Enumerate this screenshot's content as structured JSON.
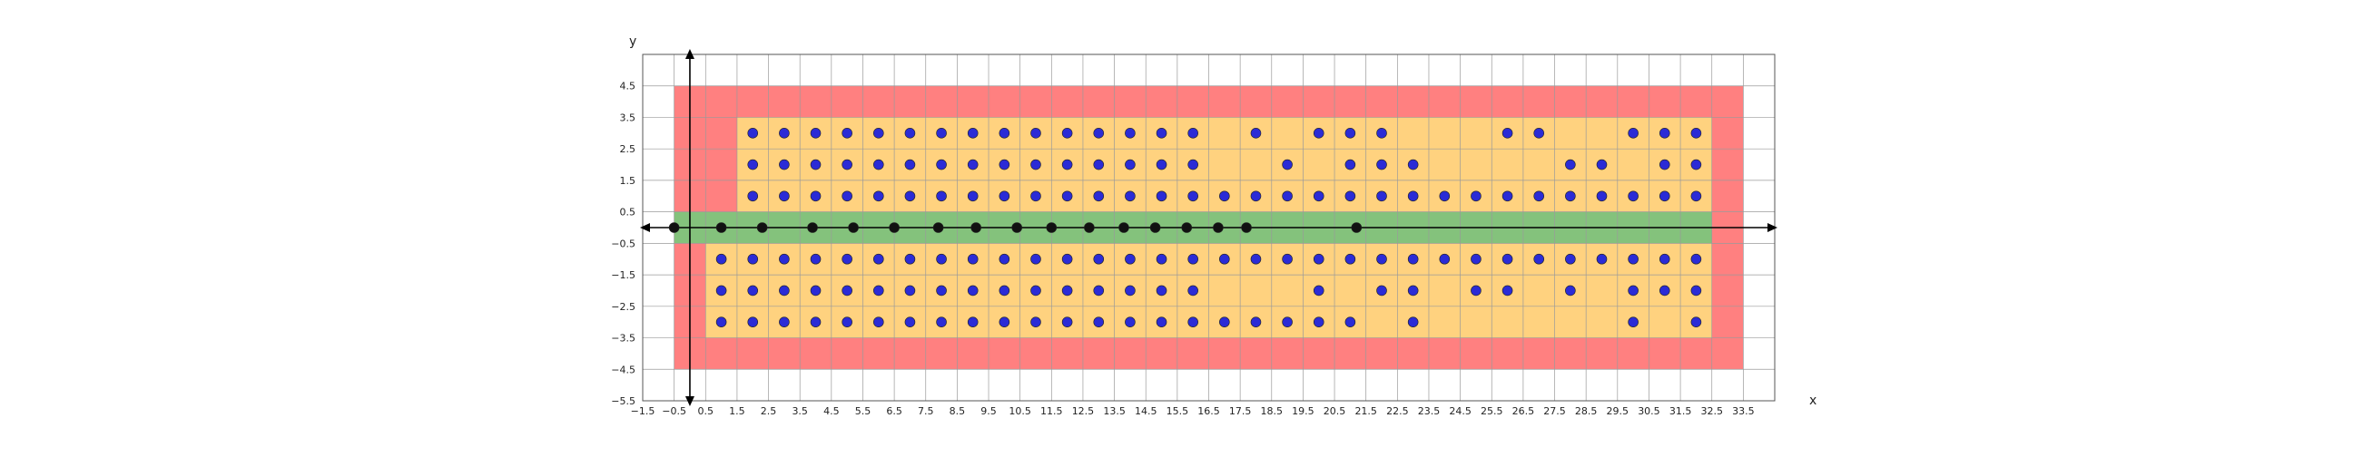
{
  "chart_data": {
    "type": "scatter",
    "title": "",
    "xlabel": "x",
    "ylabel": "y",
    "xlim": [
      -1.5,
      34.5
    ],
    "ylim": [
      -5.5,
      5.5
    ],
    "x_ticks": [
      "-1.5",
      "-0.5",
      "0.5",
      "1.5",
      "2.5",
      "3.5",
      "4.5",
      "5.5",
      "6.5",
      "7.5",
      "8.5",
      "9.5",
      "10.5",
      "11.5",
      "12.5",
      "13.5",
      "14.5",
      "15.5",
      "16.5",
      "17.5",
      "18.5",
      "19.5",
      "20.5",
      "21.5",
      "22.5",
      "23.5",
      "24.5",
      "25.5",
      "26.5",
      "27.5",
      "28.5",
      "29.5",
      "30.5",
      "31.5",
      "32.5",
      "33.5"
    ],
    "y_ticks": [
      "4.5",
      "3.5",
      "2.5",
      "1.5",
      "0.5",
      "-0.5",
      "-1.5",
      "-2.5",
      "-3.5",
      "-4.5",
      "-5.5"
    ],
    "grid": true,
    "regions": [
      {
        "name": "outer",
        "color": "#ff8080",
        "x": [
          -0.5,
          33.5
        ],
        "y": [
          -4.5,
          4.5
        ]
      },
      {
        "name": "inner-top",
        "color": "#ffd27f",
        "x": [
          1.5,
          32.5
        ],
        "y": [
          0.5,
          3.5
        ]
      },
      {
        "name": "inner-top-left",
        "color": "#ffd27f",
        "x": [
          0.5,
          1.5
        ],
        "y": [
          0.5,
          0.5
        ]
      },
      {
        "name": "inner-bottom",
        "color": "#ffd27f",
        "x": [
          0.5,
          32.5
        ],
        "y": [
          -3.5,
          -0.5
        ]
      },
      {
        "name": "band",
        "color": "#84c27c",
        "x": [
          -0.5,
          32.5
        ],
        "y": [
          -0.5,
          0.5
        ]
      }
    ],
    "series": [
      {
        "color": "#2b2bd6",
        "points": [
          [
            2,
            3
          ],
          [
            3,
            3
          ],
          [
            4,
            3
          ],
          [
            5,
            3
          ],
          [
            6,
            3
          ],
          [
            7,
            3
          ],
          [
            8,
            3
          ],
          [
            9,
            3
          ],
          [
            10,
            3
          ],
          [
            11,
            3
          ],
          [
            12,
            3
          ],
          [
            13,
            3
          ],
          [
            14,
            3
          ],
          [
            15,
            3
          ],
          [
            16,
            3
          ],
          [
            18,
            3
          ],
          [
            20,
            3
          ],
          [
            21,
            3
          ],
          [
            22,
            3
          ],
          [
            26,
            3
          ],
          [
            27,
            3
          ],
          [
            30,
            3
          ],
          [
            31,
            3
          ],
          [
            32,
            3
          ],
          [
            2,
            2
          ],
          [
            3,
            2
          ],
          [
            4,
            2
          ],
          [
            5,
            2
          ],
          [
            6,
            2
          ],
          [
            7,
            2
          ],
          [
            8,
            2
          ],
          [
            9,
            2
          ],
          [
            10,
            2
          ],
          [
            11,
            2
          ],
          [
            12,
            2
          ],
          [
            13,
            2
          ],
          [
            14,
            2
          ],
          [
            15,
            2
          ],
          [
            16,
            2
          ],
          [
            19,
            2
          ],
          [
            21,
            2
          ],
          [
            22,
            2
          ],
          [
            23,
            2
          ],
          [
            28,
            2
          ],
          [
            29,
            2
          ],
          [
            31,
            2
          ],
          [
            32,
            2
          ],
          [
            2,
            1
          ],
          [
            3,
            1
          ],
          [
            4,
            1
          ],
          [
            5,
            1
          ],
          [
            6,
            1
          ],
          [
            7,
            1
          ],
          [
            8,
            1
          ],
          [
            9,
            1
          ],
          [
            10,
            1
          ],
          [
            11,
            1
          ],
          [
            12,
            1
          ],
          [
            13,
            1
          ],
          [
            14,
            1
          ],
          [
            15,
            1
          ],
          [
            16,
            1
          ],
          [
            17,
            1
          ],
          [
            18,
            1
          ],
          [
            19,
            1
          ],
          [
            20,
            1
          ],
          [
            21,
            1
          ],
          [
            22,
            1
          ],
          [
            23,
            1
          ],
          [
            24,
            1
          ],
          [
            25,
            1
          ],
          [
            26,
            1
          ],
          [
            27,
            1
          ],
          [
            28,
            1
          ],
          [
            29,
            1
          ],
          [
            30,
            1
          ],
          [
            31,
            1
          ],
          [
            32,
            1
          ],
          [
            1,
            -1
          ],
          [
            2,
            -1
          ],
          [
            3,
            -1
          ],
          [
            4,
            -1
          ],
          [
            5,
            -1
          ],
          [
            6,
            -1
          ],
          [
            7,
            -1
          ],
          [
            8,
            -1
          ],
          [
            9,
            -1
          ],
          [
            10,
            -1
          ],
          [
            11,
            -1
          ],
          [
            12,
            -1
          ],
          [
            13,
            -1
          ],
          [
            14,
            -1
          ],
          [
            15,
            -1
          ],
          [
            16,
            -1
          ],
          [
            17,
            -1
          ],
          [
            18,
            -1
          ],
          [
            19,
            -1
          ],
          [
            20,
            -1
          ],
          [
            21,
            -1
          ],
          [
            22,
            -1
          ],
          [
            23,
            -1
          ],
          [
            24,
            -1
          ],
          [
            25,
            -1
          ],
          [
            26,
            -1
          ],
          [
            27,
            -1
          ],
          [
            28,
            -1
          ],
          [
            29,
            -1
          ],
          [
            30,
            -1
          ],
          [
            31,
            -1
          ],
          [
            32,
            -1
          ],
          [
            1,
            -2
          ],
          [
            2,
            -2
          ],
          [
            3,
            -2
          ],
          [
            4,
            -2
          ],
          [
            5,
            -2
          ],
          [
            6,
            -2
          ],
          [
            7,
            -2
          ],
          [
            8,
            -2
          ],
          [
            9,
            -2
          ],
          [
            10,
            -2
          ],
          [
            11,
            -2
          ],
          [
            12,
            -2
          ],
          [
            13,
            -2
          ],
          [
            14,
            -2
          ],
          [
            15,
            -2
          ],
          [
            16,
            -2
          ],
          [
            20,
            -2
          ],
          [
            22,
            -2
          ],
          [
            23,
            -2
          ],
          [
            25,
            -2
          ],
          [
            26,
            -2
          ],
          [
            28,
            -2
          ],
          [
            30,
            -2
          ],
          [
            31,
            -2
          ],
          [
            32,
            -2
          ],
          [
            1,
            -3
          ],
          [
            2,
            -3
          ],
          [
            3,
            -3
          ],
          [
            4,
            -3
          ],
          [
            5,
            -3
          ],
          [
            6,
            -3
          ],
          [
            7,
            -3
          ],
          [
            8,
            -3
          ],
          [
            9,
            -3
          ],
          [
            10,
            -3
          ],
          [
            11,
            -3
          ],
          [
            12,
            -3
          ],
          [
            13,
            -3
          ],
          [
            14,
            -3
          ],
          [
            15,
            -3
          ],
          [
            16,
            -3
          ],
          [
            17,
            -3
          ],
          [
            18,
            -3
          ],
          [
            19,
            -3
          ],
          [
            20,
            -3
          ],
          [
            21,
            -3
          ],
          [
            23,
            -3
          ],
          [
            30,
            -3
          ],
          [
            32,
            -3
          ]
        ]
      },
      {
        "color": "#111111",
        "points": [
          [
            -0.5,
            0
          ],
          [
            1,
            0
          ],
          [
            2.3,
            0
          ],
          [
            3.9,
            0
          ],
          [
            5.2,
            0
          ],
          [
            6.5,
            0
          ],
          [
            7.9,
            0
          ],
          [
            9.1,
            0
          ],
          [
            10.4,
            0
          ],
          [
            11.5,
            0
          ],
          [
            12.7,
            0
          ],
          [
            13.8,
            0
          ],
          [
            14.8,
            0
          ],
          [
            15.8,
            0
          ],
          [
            16.8,
            0
          ],
          [
            17.7,
            0
          ],
          [
            21.2,
            0
          ]
        ]
      }
    ]
  }
}
